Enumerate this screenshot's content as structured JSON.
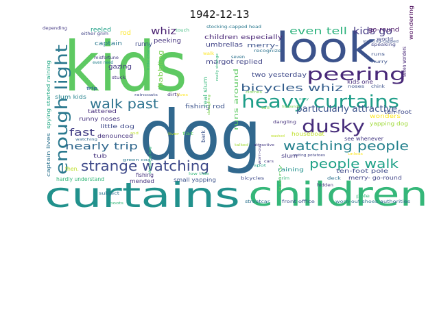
{
  "figure": {
    "title": "1942-12-13"
  },
  "word_cloud": {
    "palette": "viridis",
    "words": [
      {
        "text": "kids",
        "color": "#5ec962"
      },
      {
        "text": "dog",
        "color": "#31688e"
      },
      {
        "text": "curtains",
        "color": "#21918c"
      },
      {
        "text": "look",
        "color": "#3b528b"
      },
      {
        "text": "children",
        "color": "#35b779"
      },
      {
        "text": "heavy curtains",
        "color": "#1f9e89"
      },
      {
        "text": "peering",
        "color": "#482878"
      },
      {
        "text": "enough light",
        "color": "#2a788e"
      },
      {
        "text": "dusky",
        "color": "#472d7b"
      },
      {
        "text": "strange watching",
        "color": "#3e4989"
      },
      {
        "text": "walk past",
        "color": "#2c728e"
      },
      {
        "text": "watching people",
        "color": "#26828e"
      },
      {
        "text": "people walk",
        "color": "#1fa187"
      },
      {
        "text": "even tell",
        "color": "#2db27d"
      },
      {
        "text": "kids go",
        "color": "#443983"
      },
      {
        "text": "whiz",
        "color": "#481f70"
      },
      {
        "text": "bicycles whiz",
        "color": "#355f8d"
      },
      {
        "text": "nearly trip",
        "color": "#31688e"
      },
      {
        "text": "fast",
        "color": "#433e85"
      },
      {
        "text": "particularly attractive",
        "color": "#3b528b"
      },
      {
        "text": "go-round",
        "color": "#471063"
      },
      {
        "text": "children especially",
        "color": "#482475"
      },
      {
        "text": "umbrellas",
        "color": "#414487"
      },
      {
        "text": "captain",
        "color": "#2a788e"
      },
      {
        "text": "runny",
        "color": "#3e4989"
      },
      {
        "text": "peeking",
        "color": "#46337e"
      },
      {
        "text": "merry-",
        "color": "#3b528b"
      },
      {
        "text": "margot replied",
        "color": "#414487"
      },
      {
        "text": "two yesterday",
        "color": "#3e4989"
      },
      {
        "text": "fishing rod",
        "color": "#3b528b"
      },
      {
        "text": "real slum",
        "color": "#35b779"
      },
      {
        "text": "runs around",
        "color": "#5ec962"
      },
      {
        "text": "babbling",
        "color": "#7ad151"
      },
      {
        "text": "gazing",
        "color": "#443983"
      },
      {
        "text": "reeled",
        "color": "#1fa187"
      },
      {
        "text": "rod",
        "color": "#fde725"
      },
      {
        "text": "slum kids",
        "color": "#26828e"
      },
      {
        "text": "tattered",
        "color": "#472d7b"
      },
      {
        "text": "runny noses",
        "color": "#46337e"
      },
      {
        "text": "little dog",
        "color": "#3e4989"
      },
      {
        "text": "denounced",
        "color": "#46337e"
      },
      {
        "text": "tub",
        "color": "#46337e"
      },
      {
        "text": "fishing",
        "color": "#46337e"
      },
      {
        "text": "mended",
        "color": "#46337e"
      },
      {
        "text": "small yapping",
        "color": "#3b528b"
      },
      {
        "text": "bark",
        "color": "#3b528b"
      },
      {
        "text": "houseboat",
        "color": "#bddf26"
      },
      {
        "text": "wonders",
        "color": "#fde725"
      },
      {
        "text": "yapping dog",
        "color": "#a0da39"
      },
      {
        "text": "see whenever",
        "color": "#443983"
      },
      {
        "text": "ten-foot",
        "color": "#3e4989"
      },
      {
        "text": "ten-foot pole",
        "color": "#3e4989"
      },
      {
        "text": "merry- go-round",
        "color": "#414487"
      },
      {
        "text": "raining",
        "color": "#21918c"
      },
      {
        "text": "slum",
        "color": "#443983"
      },
      {
        "text": "hardly understand",
        "color": "#35b779"
      },
      {
        "text": "then.",
        "color": "#bddf26"
      },
      {
        "text": "captain lives",
        "color": "#2c728e"
      },
      {
        "text": "spying started raining",
        "color": "#22a884"
      },
      {
        "text": "seven wonders",
        "color": "#482878"
      },
      {
        "text": "wondering",
        "color": "#440154"
      },
      {
        "text": "kids one",
        "color": "#472d7b"
      },
      {
        "text": "depending",
        "color": "#443983"
      },
      {
        "text": "either grim",
        "color": "#414487"
      },
      {
        "text": "touch",
        "color": "#35b779"
      },
      {
        "text": "stocking-capped head",
        "color": "#2a788e"
      },
      {
        "text": "misfortune",
        "color": "#443983"
      },
      {
        "text": "even need",
        "color": "#26828e"
      },
      {
        "text": "stuck",
        "color": "#46337e"
      },
      {
        "text": "little change",
        "color": "#35b779"
      },
      {
        "text": "trip",
        "color": "#31688e"
      },
      {
        "text": "raincoats",
        "color": "#3e4989"
      },
      {
        "text": "dirty",
        "color": "#46337e"
      },
      {
        "text": "lives",
        "color": "#fde725"
      },
      {
        "text": "recognize",
        "color": "#2c728e"
      },
      {
        "text": "walk",
        "color": "#fde725"
      },
      {
        "text": "seven",
        "color": "#2c728e"
      },
      {
        "text": "really strange",
        "color": "#35b779"
      },
      {
        "text": "tall",
        "color": "#7ad151"
      },
      {
        "text": "husbands",
        "color": "#7ad151"
      },
      {
        "text": "dangling",
        "color": "#46337e"
      },
      {
        "text": "washed",
        "color": "#bddf26"
      },
      {
        "text": "eating potatoes",
        "color": "#414487"
      },
      {
        "text": "attractive",
        "color": "#443983"
      },
      {
        "text": "cars",
        "color": "#443983"
      },
      {
        "text": "hidden",
        "color": "#46337e"
      },
      {
        "text": "deck",
        "color": "#2c728e"
      },
      {
        "text": "grim",
        "color": "#35b779"
      },
      {
        "text": "funny",
        "color": "#5ec962"
      },
      {
        "text": "pole",
        "color": "#35b779"
      },
      {
        "text": "world",
        "color": "#414487"
      },
      {
        "text": "speaking",
        "color": "#414487"
      },
      {
        "text": "runs",
        "color": "#3b528b"
      },
      {
        "text": "hurry",
        "color": "#3b528b"
      },
      {
        "text": "noses",
        "color": "#3b528b"
      },
      {
        "text": "chink",
        "color": "#3b528b"
      },
      {
        "text": "cozy",
        "color": "#22a884"
      },
      {
        "text": "stocking-capped",
        "color": "#3b528b"
      },
      {
        "text": "green coat",
        "color": "#2a788e"
      },
      {
        "text": "shopping bag",
        "color": "#35b779"
      },
      {
        "text": "dangling",
        "color": "#7ad151"
      },
      {
        "text": "fat",
        "color": "#5ec962"
      },
      {
        "text": "low tide",
        "color": "#35b779"
      },
      {
        "text": "subject",
        "color": "#2c728e"
      },
      {
        "text": "bicycles",
        "color": "#3e4989"
      },
      {
        "text": "streetcar",
        "color": "#2c728e"
      },
      {
        "text": "front office",
        "color": "#3b528b"
      },
      {
        "text": "worn-out shoes",
        "color": "#2a788e"
      },
      {
        "text": "authorities",
        "color": "#31688e"
      },
      {
        "text": "boots",
        "color": "#35b779"
      },
      {
        "text": "worn-out",
        "color": "#443983"
      },
      {
        "text": "watching",
        "color": "#31688e"
      },
      {
        "text": "spot",
        "color": "#1fa187"
      },
      {
        "text": "liver",
        "color": "#bddf26"
      },
      {
        "text": "rod",
        "color": "#bddf26"
      },
      {
        "text": "talked",
        "color": "#a0da39"
      },
      {
        "text": "clothes",
        "color": "#7ad151"
      },
      {
        "text": "unless",
        "color": "#fde725"
      },
      {
        "text": "trip",
        "color": "#2c728e"
      }
    ]
  }
}
